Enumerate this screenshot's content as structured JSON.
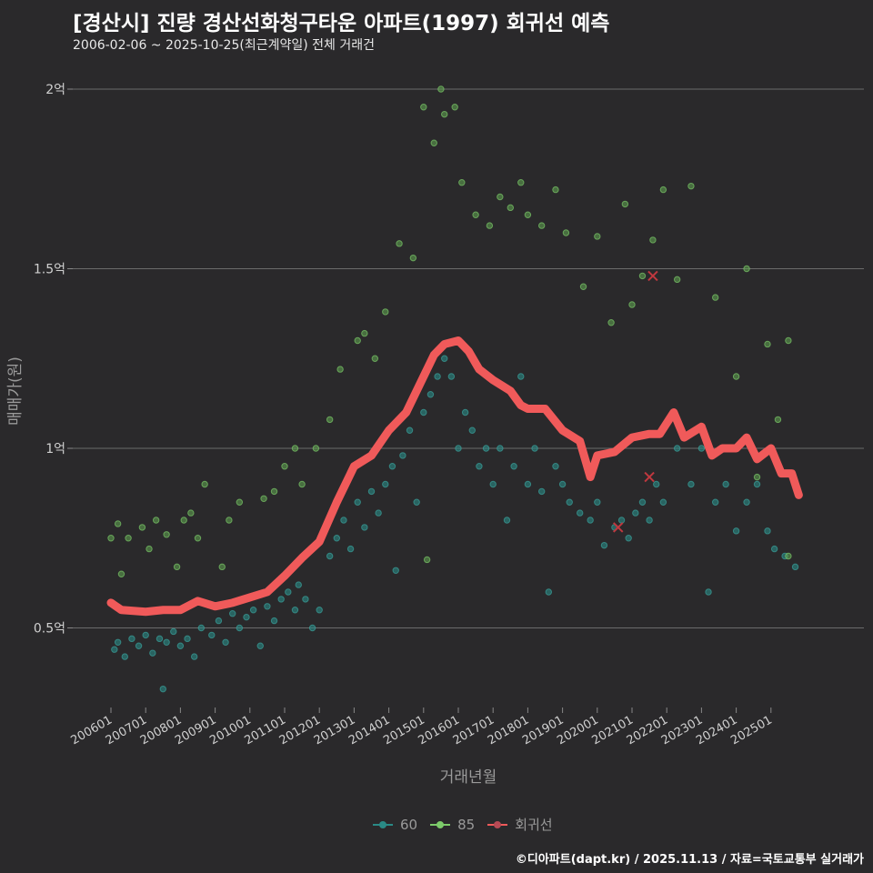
{
  "title": "[경산시] 진량 경산선화청구타운 아파트(1997) 회귀선 예측",
  "subtitle": "2006-02-06 ~ 2025-10-25(최근계약일) 전체 거래건",
  "footer": "©디아파트(dapt.kr) / 2025.11.13 / 자료=국토교통부 실거래가",
  "chart_data": {
    "type": "scatter",
    "xlabel": "거래년월",
    "ylabel": "매매가(원)",
    "xlim": [
      2005.7,
      2026.2
    ],
    "ylim": [
      0.25,
      2.1
    ],
    "grid": true,
    "legend_position": "bottom",
    "y_ticks": [
      {
        "value": 0.5,
        "label": "0.5억"
      },
      {
        "value": 1,
        "label": "1억"
      },
      {
        "value": 1.5,
        "label": "1.5억"
      },
      {
        "value": 2,
        "label": "2억"
      }
    ],
    "x_ticks": [
      "200601",
      "200701",
      "200801",
      "200901",
      "201001",
      "201101",
      "201201",
      "201301",
      "201401",
      "201501",
      "201601",
      "201701",
      "201801",
      "201901",
      "202001",
      "202101",
      "202201",
      "202301",
      "202401",
      "202501"
    ],
    "colors": {
      "60": "#2a8a86",
      "85": "#7ccb6a",
      "regression": "#f05a5a"
    },
    "series": [
      {
        "name": "60",
        "points": [
          [
            2006.1,
            0.44
          ],
          [
            2006.2,
            0.46
          ],
          [
            2006.4,
            0.42
          ],
          [
            2006.6,
            0.47
          ],
          [
            2006.8,
            0.45
          ],
          [
            2007.0,
            0.48
          ],
          [
            2007.2,
            0.43
          ],
          [
            2007.4,
            0.47
          ],
          [
            2007.5,
            0.33
          ],
          [
            2007.6,
            0.46
          ],
          [
            2007.8,
            0.49
          ],
          [
            2008.0,
            0.45
          ],
          [
            2008.2,
            0.47
          ],
          [
            2008.4,
            0.42
          ],
          [
            2008.6,
            0.5
          ],
          [
            2008.9,
            0.48
          ],
          [
            2009.1,
            0.52
          ],
          [
            2009.3,
            0.46
          ],
          [
            2009.5,
            0.54
          ],
          [
            2009.7,
            0.5
          ],
          [
            2009.9,
            0.53
          ],
          [
            2010.1,
            0.55
          ],
          [
            2010.3,
            0.45
          ],
          [
            2010.5,
            0.56
          ],
          [
            2010.7,
            0.52
          ],
          [
            2010.9,
            0.58
          ],
          [
            2011.1,
            0.6
          ],
          [
            2011.3,
            0.55
          ],
          [
            2011.4,
            0.62
          ],
          [
            2011.6,
            0.58
          ],
          [
            2011.8,
            0.5
          ],
          [
            2012.0,
            0.55
          ],
          [
            2012.3,
            0.7
          ],
          [
            2012.5,
            0.75
          ],
          [
            2012.7,
            0.8
          ],
          [
            2012.9,
            0.72
          ],
          [
            2013.1,
            0.85
          ],
          [
            2013.3,
            0.78
          ],
          [
            2013.5,
            0.88
          ],
          [
            2013.7,
            0.82
          ],
          [
            2013.9,
            0.9
          ],
          [
            2014.1,
            0.95
          ],
          [
            2014.2,
            0.66
          ],
          [
            2014.4,
            0.98
          ],
          [
            2014.6,
            1.05
          ],
          [
            2014.8,
            0.85
          ],
          [
            2015.0,
            1.1
          ],
          [
            2015.2,
            1.15
          ],
          [
            2015.4,
            1.2
          ],
          [
            2015.6,
            1.25
          ],
          [
            2015.8,
            1.2
          ],
          [
            2016.0,
            1.0
          ],
          [
            2016.2,
            1.1
          ],
          [
            2016.4,
            1.05
          ],
          [
            2016.6,
            0.95
          ],
          [
            2016.8,
            1.0
          ],
          [
            2017.0,
            0.9
          ],
          [
            2017.2,
            1.0
          ],
          [
            2017.4,
            0.8
          ],
          [
            2017.6,
            0.95
          ],
          [
            2017.8,
            1.2
          ],
          [
            2018.0,
            0.9
          ],
          [
            2018.2,
            1.0
          ],
          [
            2018.4,
            0.88
          ],
          [
            2018.6,
            0.6
          ],
          [
            2018.8,
            0.95
          ],
          [
            2019.0,
            0.9
          ],
          [
            2019.2,
            0.85
          ],
          [
            2019.5,
            0.82
          ],
          [
            2019.8,
            0.8
          ],
          [
            2020.0,
            0.85
          ],
          [
            2020.2,
            0.73
          ],
          [
            2020.5,
            0.78
          ],
          [
            2020.7,
            0.8
          ],
          [
            2020.9,
            0.75
          ],
          [
            2021.1,
            0.82
          ],
          [
            2021.3,
            0.85
          ],
          [
            2021.5,
            0.8
          ],
          [
            2021.7,
            0.9
          ],
          [
            2021.9,
            0.85
          ],
          [
            2022.3,
            1.0
          ],
          [
            2022.7,
            0.9
          ],
          [
            2023.0,
            1.0
          ],
          [
            2023.2,
            0.6
          ],
          [
            2023.4,
            0.85
          ],
          [
            2023.7,
            0.9
          ],
          [
            2024.0,
            0.77
          ],
          [
            2024.3,
            0.85
          ],
          [
            2024.6,
            0.9
          ],
          [
            2024.9,
            0.77
          ],
          [
            2025.1,
            0.72
          ],
          [
            2025.4,
            0.7
          ],
          [
            2025.7,
            0.67
          ]
        ]
      },
      {
        "name": "85",
        "points": [
          [
            2006.0,
            0.75
          ],
          [
            2006.2,
            0.79
          ],
          [
            2006.3,
            0.65
          ],
          [
            2006.5,
            0.75
          ],
          [
            2006.9,
            0.78
          ],
          [
            2007.1,
            0.72
          ],
          [
            2007.3,
            0.8
          ],
          [
            2007.6,
            0.76
          ],
          [
            2007.9,
            0.67
          ],
          [
            2008.1,
            0.8
          ],
          [
            2008.3,
            0.82
          ],
          [
            2008.5,
            0.75
          ],
          [
            2008.7,
            0.9
          ],
          [
            2009.2,
            0.67
          ],
          [
            2009.4,
            0.8
          ],
          [
            2009.7,
            0.85
          ],
          [
            2010.4,
            0.86
          ],
          [
            2010.7,
            0.88
          ],
          [
            2011.0,
            0.95
          ],
          [
            2011.3,
            1.0
          ],
          [
            2011.5,
            0.9
          ],
          [
            2011.9,
            1.0
          ],
          [
            2012.3,
            1.08
          ],
          [
            2012.6,
            1.22
          ],
          [
            2013.1,
            1.3
          ],
          [
            2013.3,
            1.32
          ],
          [
            2013.6,
            1.25
          ],
          [
            2013.9,
            1.38
          ],
          [
            2014.3,
            1.57
          ],
          [
            2014.7,
            1.53
          ],
          [
            2015.0,
            1.95
          ],
          [
            2015.1,
            0.69
          ],
          [
            2015.3,
            1.85
          ],
          [
            2015.5,
            2.0
          ],
          [
            2015.6,
            1.93
          ],
          [
            2015.9,
            1.95
          ],
          [
            2016.1,
            1.74
          ],
          [
            2016.5,
            1.65
          ],
          [
            2016.9,
            1.62
          ],
          [
            2017.2,
            1.7
          ],
          [
            2017.5,
            1.67
          ],
          [
            2017.8,
            1.74
          ],
          [
            2018.0,
            1.65
          ],
          [
            2018.4,
            1.62
          ],
          [
            2018.8,
            1.72
          ],
          [
            2019.1,
            1.6
          ],
          [
            2019.6,
            1.45
          ],
          [
            2020.0,
            1.59
          ],
          [
            2020.4,
            1.35
          ],
          [
            2020.8,
            1.68
          ],
          [
            2021.0,
            1.4
          ],
          [
            2021.3,
            1.48
          ],
          [
            2021.6,
            1.58
          ],
          [
            2021.9,
            1.72
          ],
          [
            2022.3,
            1.47
          ],
          [
            2022.7,
            1.73
          ],
          [
            2023.4,
            1.42
          ],
          [
            2024.0,
            1.2
          ],
          [
            2024.3,
            1.5
          ],
          [
            2024.6,
            0.92
          ],
          [
            2024.9,
            1.29
          ],
          [
            2025.2,
            1.08
          ],
          [
            2025.5,
            1.3
          ],
          [
            2025.5,
            0.7
          ]
        ]
      },
      {
        "name": "회귀선",
        "type": "line",
        "points": [
          [
            2006.0,
            0.57
          ],
          [
            2006.3,
            0.55
          ],
          [
            2007.0,
            0.545
          ],
          [
            2007.5,
            0.55
          ],
          [
            2008.0,
            0.55
          ],
          [
            2008.5,
            0.575
          ],
          [
            2009.0,
            0.56
          ],
          [
            2009.5,
            0.57
          ],
          [
            2010.0,
            0.585
          ],
          [
            2010.5,
            0.6
          ],
          [
            2011.0,
            0.645
          ],
          [
            2011.5,
            0.695
          ],
          [
            2012.0,
            0.74
          ],
          [
            2012.5,
            0.85
          ],
          [
            2013.0,
            0.95
          ],
          [
            2013.5,
            0.98
          ],
          [
            2014.0,
            1.05
          ],
          [
            2014.5,
            1.1
          ],
          [
            2015.0,
            1.2
          ],
          [
            2015.3,
            1.26
          ],
          [
            2015.6,
            1.29
          ],
          [
            2016.0,
            1.3
          ],
          [
            2016.3,
            1.27
          ],
          [
            2016.6,
            1.22
          ],
          [
            2017.0,
            1.19
          ],
          [
            2017.5,
            1.16
          ],
          [
            2017.8,
            1.12
          ],
          [
            2018.0,
            1.11
          ],
          [
            2018.5,
            1.11
          ],
          [
            2019.0,
            1.05
          ],
          [
            2019.5,
            1.02
          ],
          [
            2019.8,
            0.92
          ],
          [
            2020.0,
            0.98
          ],
          [
            2020.5,
            0.99
          ],
          [
            2021.0,
            1.03
          ],
          [
            2021.5,
            1.04
          ],
          [
            2021.8,
            1.04
          ],
          [
            2022.0,
            1.07
          ],
          [
            2022.2,
            1.1
          ],
          [
            2022.5,
            1.03
          ],
          [
            2023.0,
            1.06
          ],
          [
            2023.3,
            0.98
          ],
          [
            2023.6,
            1.0
          ],
          [
            2024.0,
            1.0
          ],
          [
            2024.3,
            1.03
          ],
          [
            2024.6,
            0.97
          ],
          [
            2025.0,
            1.0
          ],
          [
            2025.3,
            0.93
          ],
          [
            2025.6,
            0.93
          ],
          [
            2025.8,
            0.87
          ]
        ]
      }
    ],
    "highlights": [
      [
        2020.6,
        0.78
      ],
      [
        2021.5,
        0.92
      ],
      [
        2021.6,
        1.48
      ]
    ]
  }
}
